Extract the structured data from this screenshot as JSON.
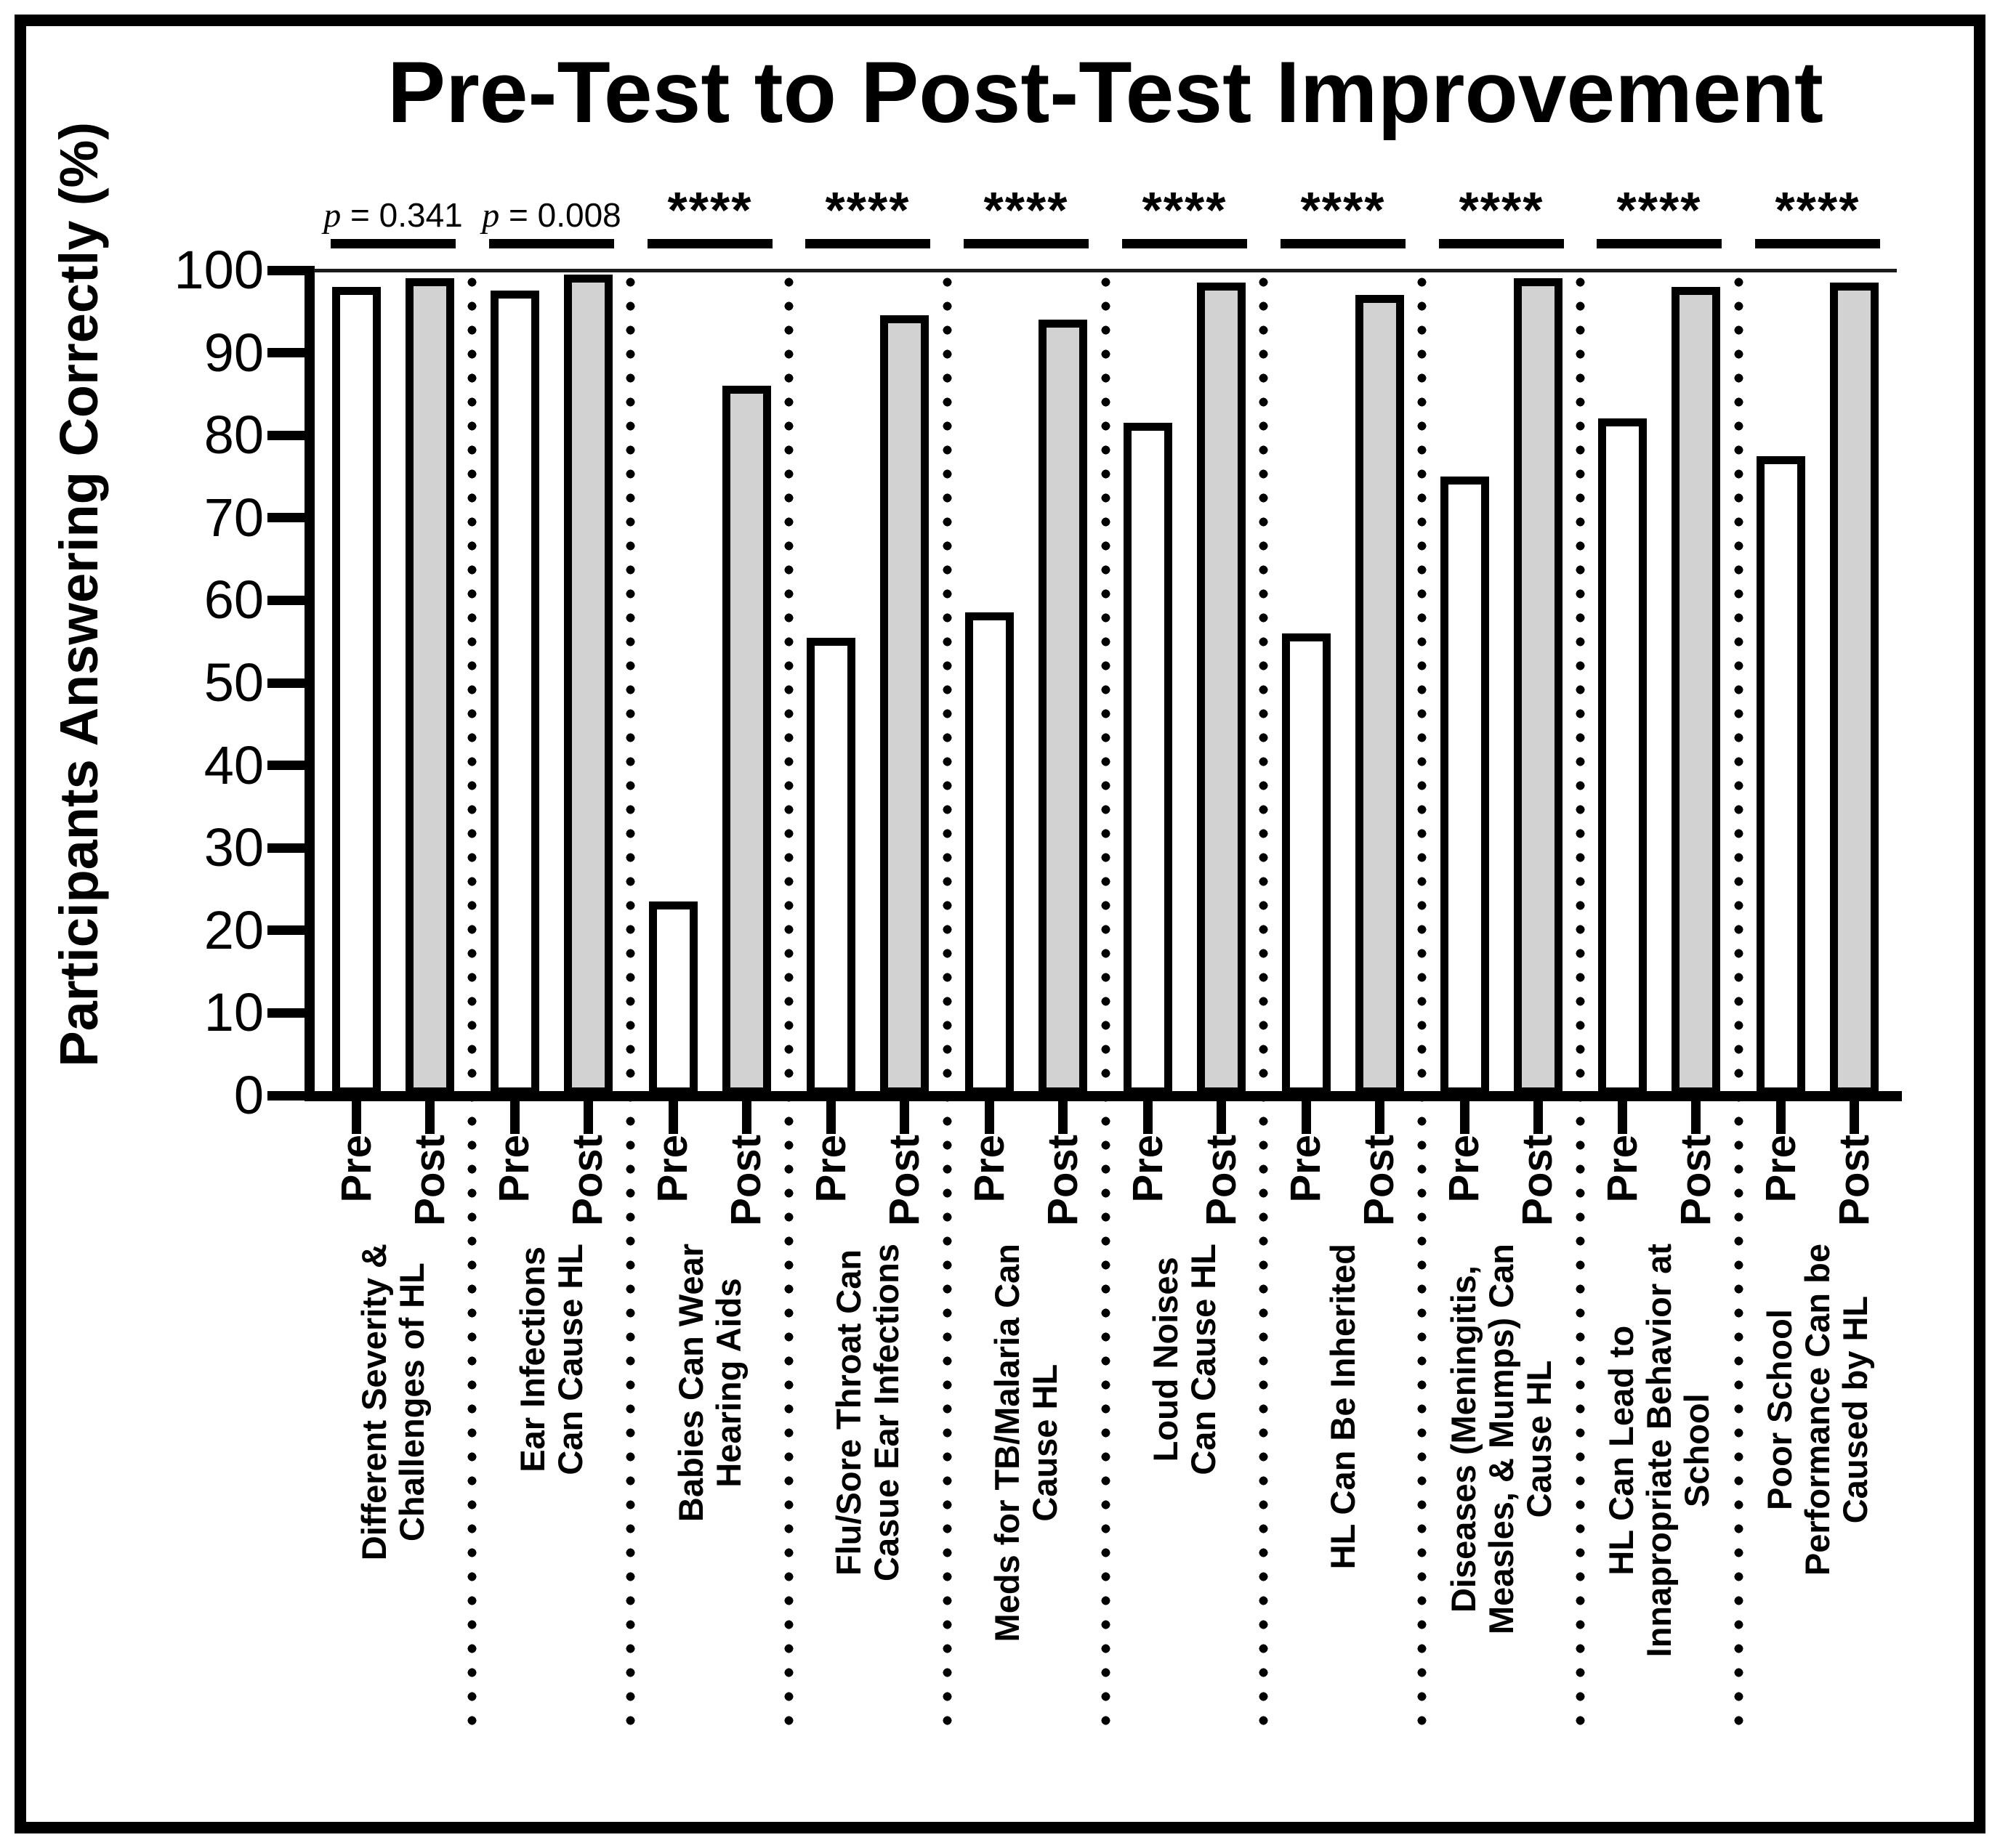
{
  "figure": {
    "title": "Pre-Test to Post-Test Improvement",
    "y_axis_label": "Participants Answering Correctly (%)"
  },
  "colors": {
    "pre_fill": "#ffffff",
    "post_fill": "#d2d2d2",
    "line": "#000000"
  },
  "chart_data": {
    "type": "bar",
    "title": "Pre-Test to Post-Test Improvement",
    "ylabel": "Participants Answering Correctly (%)",
    "xlabel": "",
    "ylim": [
      0,
      100
    ],
    "grid": false,
    "legend": "none",
    "y_ticks": [
      0,
      10,
      20,
      30,
      40,
      50,
      60,
      70,
      80,
      90,
      100
    ],
    "bar_pair_labels": [
      "Pre",
      "Post"
    ],
    "categories": [
      "Different Severity &\nChallenges of HL",
      "Ear Infections\nCan Cause HL",
      "Babies Can Wear\nHearing Aids",
      "Flu/Sore Throat Can\nCasue Ear Infections",
      "Meds for TB/Malaria Can\nCause HL",
      "Loud Noises\nCan Cause HL",
      "HL Can Be Inherited",
      "Diseases (Meningitis,\nMeasles, & Mumps) Can\nCause HL",
      "HL Can Lead to\nInnapropriate Behavior at\nSchool",
      "Poor School\nPerformance Can be\nCaused by HL"
    ],
    "series": [
      {
        "name": "Pre",
        "fill": "#ffffff",
        "values": [
          98,
          97.5,
          23.5,
          55.5,
          58.5,
          81.5,
          56,
          75,
          82,
          77.5
        ]
      },
      {
        "name": "Post",
        "fill": "#d2d2d2",
        "values": [
          99,
          99.5,
          86,
          94.5,
          94,
          98.5,
          97,
          99,
          98,
          98.5
        ]
      }
    ],
    "significance": [
      "p = 0.341",
      "p = 0.008",
      "****",
      "****",
      "****",
      "****",
      "****",
      "****",
      "****",
      "****"
    ]
  }
}
